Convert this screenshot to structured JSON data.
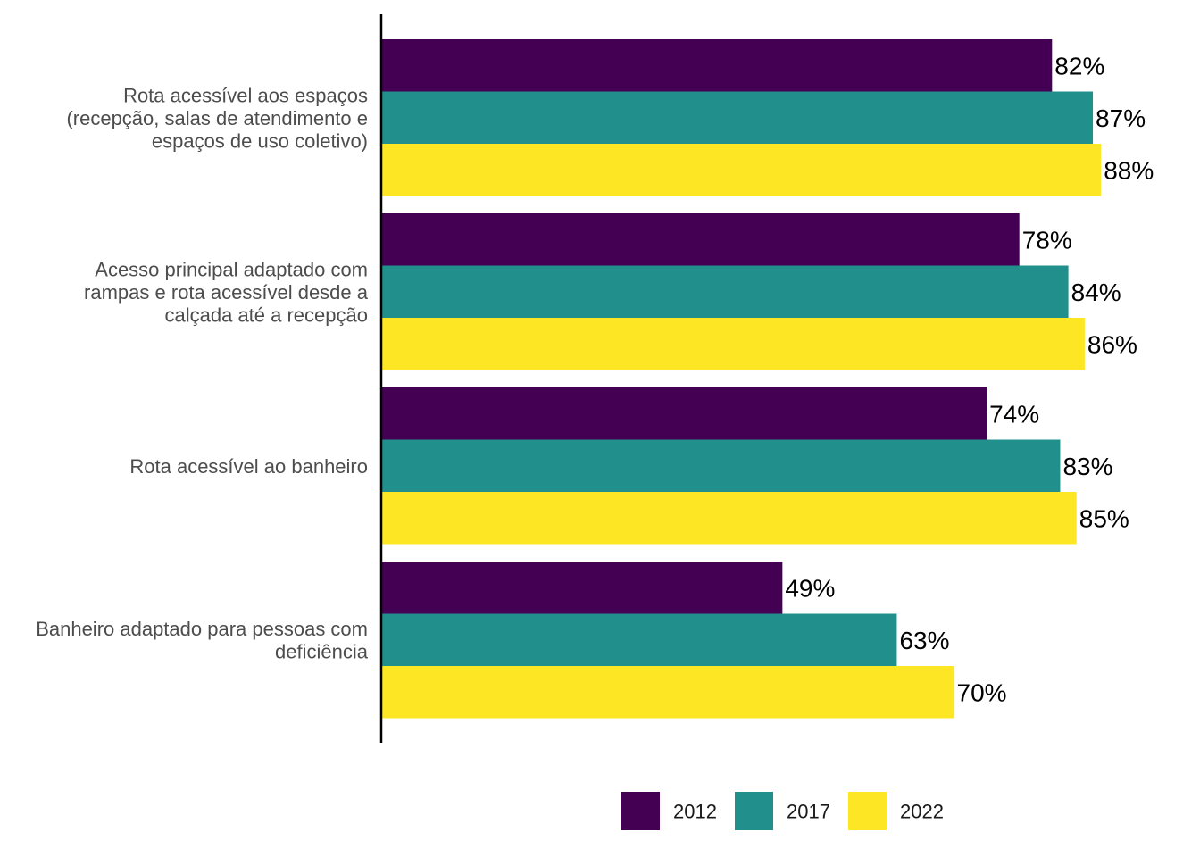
{
  "chart_data": {
    "type": "bar",
    "orientation": "horizontal",
    "categories": [
      [
        "Rota acessível aos espaços",
        "(recepção, salas de atendimento e",
        "espaços de uso coletivo)"
      ],
      [
        "Acesso principal adaptado com",
        "rampas e rota acessível desde a",
        "calçada até a recepção"
      ],
      [
        "Rota acessível ao banheiro"
      ],
      [
        "Banheiro adaptado para pessoas com",
        "deficiência"
      ]
    ],
    "series": [
      {
        "name": "2012",
        "color": "#440154",
        "values": [
          82,
          78,
          74,
          49
        ]
      },
      {
        "name": "2017",
        "color": "#21908C",
        "values": [
          87,
          84,
          83,
          63
        ]
      },
      {
        "name": "2022",
        "color": "#FDE725",
        "values": [
          88,
          86,
          85,
          70
        ]
      }
    ],
    "value_suffix": "%",
    "xlim": [
      0,
      100
    ],
    "grid": false,
    "legend_position": "bottom",
    "title": "",
    "xlabel": "",
    "ylabel": ""
  }
}
